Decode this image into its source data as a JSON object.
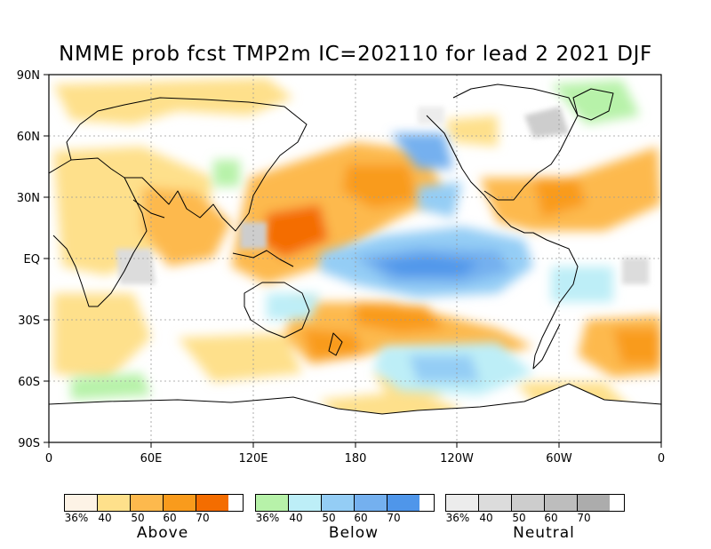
{
  "title": "NMME prob fcst TMP2m IC=202110 for lead 2 2021 DJF",
  "lat_labels": [
    "90N",
    "60N",
    "30N",
    "EQ",
    "30S",
    "60S",
    "90S"
  ],
  "lon_labels": [
    "0",
    "60E",
    "120E",
    "180",
    "120W",
    "60W",
    "0"
  ],
  "legend": [
    {
      "name": "Above",
      "colors": [
        "#fdf3e6",
        "#fee08b",
        "#fdb94d",
        "#f99b1c",
        "#f46d00"
      ],
      "ticks": [
        "36%",
        "40",
        "50",
        "60",
        "70"
      ]
    },
    {
      "name": "Below",
      "colors": [
        "#b7f2a9",
        "#bdeef7",
        "#94cdf5",
        "#74b0ef",
        "#4f96ea"
      ],
      "ticks": [
        "36%",
        "40",
        "50",
        "60",
        "70"
      ]
    },
    {
      "name": "Neutral",
      "colors": [
        "#ececec",
        "#dcdcdc",
        "#cdcdcd",
        "#bdbdbd",
        "#acacac"
      ],
      "ticks": [
        "36%",
        "40",
        "50",
        "60",
        "70"
      ]
    }
  ],
  "colors": {
    "above": "#f99b1c",
    "below": "#4f96ea",
    "neutral": "#bdbdbd",
    "coast": "#000000",
    "grid": "#9a9a9a"
  }
}
